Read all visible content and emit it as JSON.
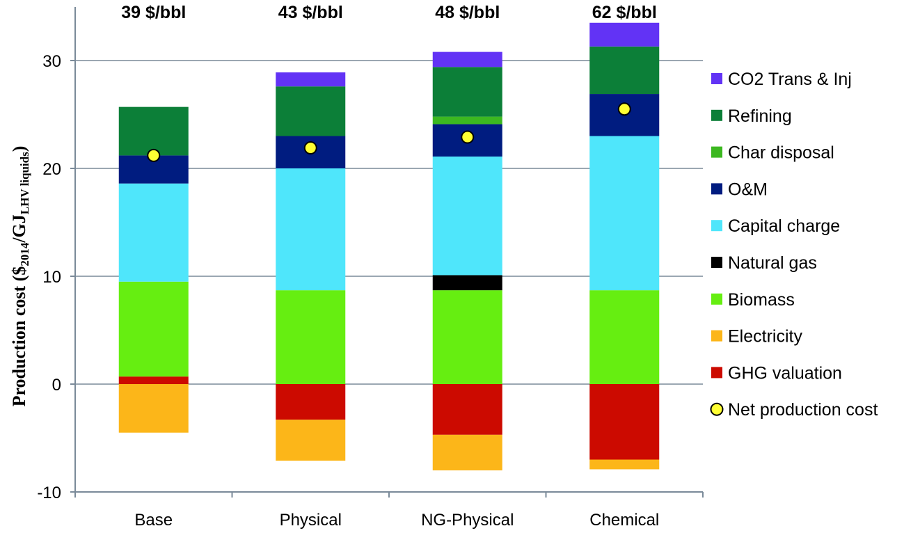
{
  "chart_data": {
    "type": "bar",
    "stacked": true,
    "categories": [
      "Base",
      "Physical",
      "NG-Physical",
      "Chemical"
    ],
    "top_labels": [
      "39 $/bbl",
      "43 $/bbl",
      "48 $/bbl",
      "62 $/bbl"
    ],
    "ylabel": {
      "main": "Production cost  ($",
      "sub1": "2014",
      "mid": "/GJ",
      "sub2": "LHV liquids",
      "end": ")"
    },
    "ylim": [
      -10,
      35
    ],
    "yticks": [
      -10,
      0,
      10,
      20,
      30
    ],
    "grid": true,
    "legend_position": "right",
    "positive_series": [
      {
        "name": "Biomass",
        "color": "#66ee11",
        "values": [
          8.8,
          8.7,
          8.7,
          8.7
        ]
      },
      {
        "name": "Natural gas",
        "color": "#000000",
        "values": [
          0,
          0,
          1.4,
          0
        ]
      },
      {
        "name": "Capital charge",
        "color": "#4fe6fb",
        "values": [
          9.1,
          11.3,
          11.0,
          14.3
        ]
      },
      {
        "name": "O&M",
        "color": "#001c80",
        "values": [
          2.6,
          3.0,
          3.0,
          3.9
        ]
      },
      {
        "name": "Char disposal",
        "color": "#3cb820",
        "values": [
          0,
          0,
          0.7,
          0
        ]
      },
      {
        "name": "Refining",
        "color": "#0c7f38",
        "values": [
          4.5,
          4.6,
          4.6,
          4.4
        ]
      },
      {
        "name": "CO2 Trans & Inj",
        "color": "#6233f5",
        "values": [
          0,
          1.3,
          1.4,
          2.2
        ]
      }
    ],
    "base_offsets": [
      0.7,
      0,
      0,
      0
    ],
    "special_segments": [
      {
        "series": "GHG valuation",
        "category": "Base",
        "from": 0,
        "to": 0.7
      }
    ],
    "negative_series": [
      {
        "name": "GHG valuation",
        "color": "#cc0a00",
        "values": [
          0,
          -3.3,
          -4.7,
          -7.0
        ]
      },
      {
        "name": "Electricity",
        "color": "#fcb619",
        "values": [
          -4.5,
          -3.8,
          -3.3,
          -0.9
        ]
      }
    ],
    "net_production_cost": {
      "name": "Net production cost",
      "color": "#ffff33",
      "values": [
        21.2,
        21.9,
        22.9,
        25.5
      ]
    },
    "legend": [
      {
        "name": "CO2 Trans & Inj",
        "color": "#6233f5",
        "marker": "square"
      },
      {
        "name": "Refining",
        "color": "#0c7f38",
        "marker": "square"
      },
      {
        "name": "Char disposal",
        "color": "#3cb820",
        "marker": "square"
      },
      {
        "name": "O&M",
        "color": "#001c80",
        "marker": "square"
      },
      {
        "name": "Capital charge",
        "color": "#4fe6fb",
        "marker": "square"
      },
      {
        "name": "Natural gas",
        "color": "#000000",
        "marker": "square"
      },
      {
        "name": "Biomass",
        "color": "#66ee11",
        "marker": "square"
      },
      {
        "name": "Electricity",
        "color": "#fcb619",
        "marker": "square"
      },
      {
        "name": "GHG valuation",
        "color": "#cc0a00",
        "marker": "square"
      },
      {
        "name": "Net production cost",
        "color": "#ffff33",
        "marker": "circle"
      }
    ]
  }
}
